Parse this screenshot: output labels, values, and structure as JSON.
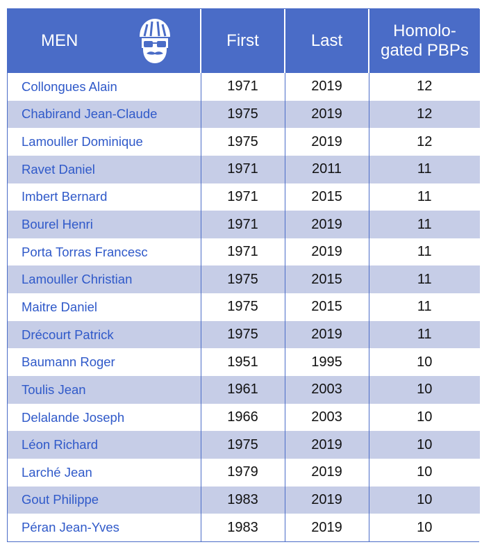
{
  "header": {
    "name": "MEN",
    "first": "First",
    "last": "Last",
    "pbp_line1": "Homolo-",
    "pbp_line2": "gated PBPs",
    "icon": "cyclist-face-icon"
  },
  "colors": {
    "header_bg": "#4a6cc7",
    "stripe": "#c6cde7",
    "name_text": "#2f59c9"
  },
  "rows": [
    {
      "name": "Collongues Alain",
      "first": "1971",
      "last": "2019",
      "pbps": "12"
    },
    {
      "name": "Chabirand Jean-Claude",
      "first": "1975",
      "last": "2019",
      "pbps": "12"
    },
    {
      "name": "Lamouller Dominique",
      "first": "1975",
      "last": "2019",
      "pbps": "12"
    },
    {
      "name": "Ravet Daniel",
      "first": "1971",
      "last": "2011",
      "pbps": "11"
    },
    {
      "name": "Imbert Bernard",
      "first": "1971",
      "last": "2015",
      "pbps": "11"
    },
    {
      "name": "Bourel Henri",
      "first": "1971",
      "last": "2019",
      "pbps": "11"
    },
    {
      "name": "Porta Torras Francesc",
      "first": "1971",
      "last": "2019",
      "pbps": "11"
    },
    {
      "name": "Lamouller Christian",
      "first": "1975",
      "last": "2015",
      "pbps": "11"
    },
    {
      "name": "Maitre Daniel",
      "first": "1975",
      "last": "2015",
      "pbps": "11"
    },
    {
      "name": "Drécourt Patrick",
      "first": "1975",
      "last": "2019",
      "pbps": "11"
    },
    {
      "name": "Baumann Roger",
      "first": "1951",
      "last": "1995",
      "pbps": "10"
    },
    {
      "name": "Toulis Jean",
      "first": "1961",
      "last": "2003",
      "pbps": "10"
    },
    {
      "name": "Delalande Joseph",
      "first": "1966",
      "last": "2003",
      "pbps": "10"
    },
    {
      "name": "Léon Richard",
      "first": "1975",
      "last": "2019",
      "pbps": "10"
    },
    {
      "name": "Larché Jean",
      "first": "1979",
      "last": "2019",
      "pbps": "10"
    },
    {
      "name": "Gout Philippe",
      "first": "1983",
      "last": "2019",
      "pbps": "10"
    },
    {
      "name": "Péran Jean-Yves",
      "first": "1983",
      "last": "2019",
      "pbps": "10"
    }
  ]
}
